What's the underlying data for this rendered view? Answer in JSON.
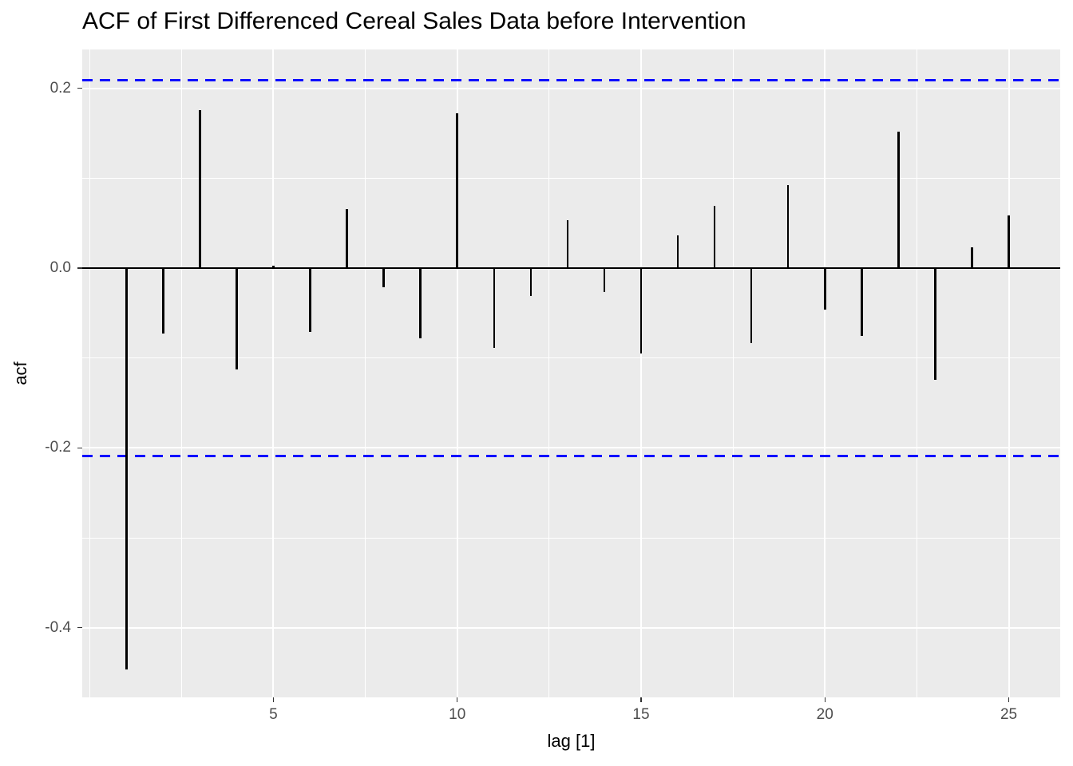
{
  "title": "ACF of First Differenced Cereal Sales Data before Intervention",
  "chart_data": {
    "type": "bar",
    "style": "stem",
    "title": "ACF of First Differenced Cereal Sales Data before Intervention",
    "xlabel": "lag [1]",
    "ylabel": "acf",
    "x": [
      1,
      2,
      3,
      4,
      5,
      6,
      7,
      8,
      9,
      10,
      11,
      12,
      13,
      14,
      15,
      16,
      17,
      18,
      19,
      20,
      21,
      22,
      23,
      24,
      25
    ],
    "values": [
      -0.446,
      -0.073,
      0.176,
      -0.113,
      0.003,
      -0.071,
      0.066,
      -0.021,
      -0.078,
      0.172,
      -0.089,
      -0.031,
      0.053,
      -0.027,
      -0.095,
      0.036,
      0.069,
      -0.083,
      0.092,
      -0.046,
      -0.075,
      0.152,
      -0.124,
      0.023,
      0.059
    ],
    "conf_upper": 0.209,
    "conf_lower": -0.209,
    "zero_line": 0,
    "xlim": [
      -0.2,
      26.4
    ],
    "ylim": [
      -0.4775,
      0.2432
    ],
    "x_ticks": [
      5,
      10,
      15,
      20,
      25
    ],
    "x_tick_labels": [
      "5",
      "10",
      "15",
      "20",
      "25"
    ],
    "y_ticks": [
      0.2,
      0.0,
      -0.2,
      -0.4
    ],
    "y_tick_labels": [
      "0.2",
      "0.0",
      "-0.2",
      "-0.4"
    ],
    "x_minor": [
      0,
      2.5,
      7.5,
      12.5,
      17.5,
      22.5
    ],
    "y_minor": [
      0.1,
      -0.1,
      -0.3
    ],
    "grid": "on",
    "legend": "none",
    "colors": {
      "panel_bg": "#EBEBEB",
      "grid_major": "#FFFFFF",
      "grid_minor": "#FFFFFF",
      "spike": "#000000",
      "zero_line": "#000000",
      "conf_line": "#0d0dff",
      "tick_label": "#4D4D4D",
      "tick_mark": "#333333",
      "title_text": "#000000"
    }
  }
}
